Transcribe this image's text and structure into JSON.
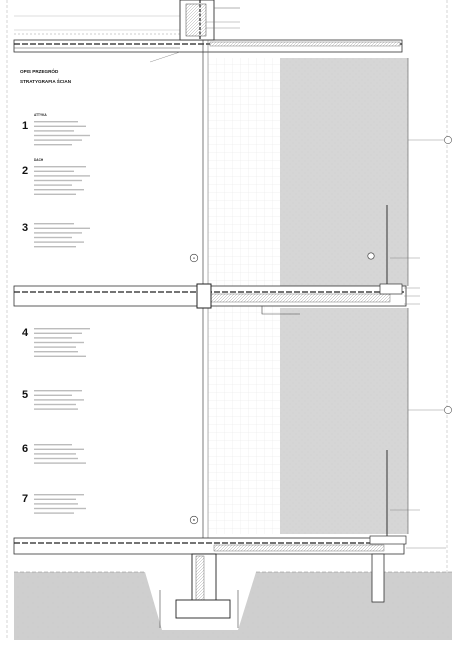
{
  "title": {
    "line1": "OPIS PRZEGRÓD",
    "line2": "STRATYGRAFIA ŚCIAN"
  },
  "layers": [
    {
      "number": "1",
      "heading": "ATTYKA",
      "lines": [
        "",
        "",
        "",
        "",
        "",
        ""
      ]
    },
    {
      "number": "2",
      "heading": "DACH",
      "lines": [
        "",
        "",
        "",
        "",
        "",
        "",
        ""
      ]
    },
    {
      "number": "3",
      "heading": "",
      "lines": [
        "",
        "",
        "",
        "",
        "",
        ""
      ]
    },
    {
      "number": "4",
      "heading": "",
      "lines": [
        "",
        "",
        "",
        "",
        "",
        "",
        ""
      ]
    },
    {
      "number": "5",
      "heading": "",
      "lines": [
        "",
        "",
        "",
        "",
        ""
      ]
    },
    {
      "number": "6",
      "heading": "",
      "lines": [
        "",
        "",
        "",
        "",
        ""
      ]
    },
    {
      "number": "7",
      "heading": "",
      "lines": [
        "",
        "",
        "",
        "",
        ""
      ]
    }
  ],
  "grid_markers": [
    "A",
    "B"
  ],
  "right_markers": [
    "",
    ""
  ],
  "annotations": [],
  "footer": "",
  "colors": {
    "line": "#333333",
    "shade": "#d6d6d6",
    "soil": "#cfcfcf",
    "grid": "#e4e4e4"
  }
}
